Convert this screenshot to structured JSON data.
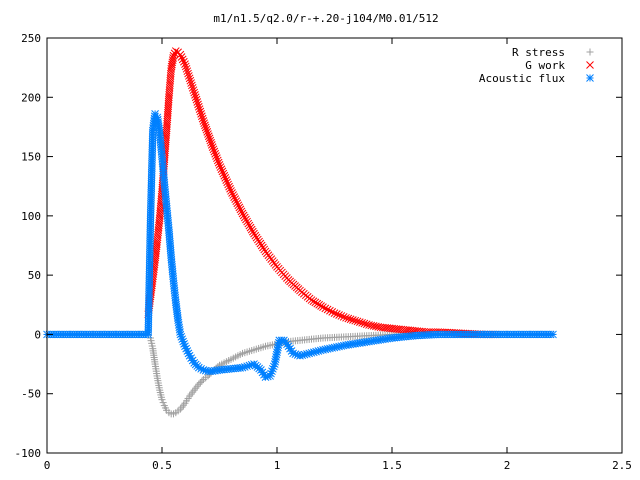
{
  "chart_data": {
    "type": "scatter",
    "title": "m1/n1.5/q2.0/r-+.20-j104/M0.01/512",
    "xlabel": "",
    "ylabel": "",
    "xlim": [
      0,
      2.5
    ],
    "ylim": [
      -100,
      250
    ],
    "xticks": [
      0,
      0.5,
      1,
      1.5,
      2,
      2.5
    ],
    "xtick_labels": [
      "0",
      "0.5",
      "1",
      "1.5",
      "2",
      "2.5"
    ],
    "yticks": [
      -100,
      -50,
      0,
      50,
      100,
      150,
      200,
      250
    ],
    "ytick_labels": [
      "-100",
      "-50",
      "0",
      "50",
      "100",
      "150",
      "200",
      "250"
    ],
    "grid": false,
    "legend_position": "top-right",
    "series": [
      {
        "name": "R stress",
        "marker": "plus",
        "color": "#a0a0a0",
        "x": [
          0.0,
          0.1,
          0.2,
          0.3,
          0.4,
          0.44,
          0.45,
          0.46,
          0.47,
          0.48,
          0.49,
          0.5,
          0.51,
          0.52,
          0.53,
          0.54,
          0.55,
          0.56,
          0.58,
          0.6,
          0.62,
          0.64,
          0.66,
          0.68,
          0.7,
          0.72,
          0.75,
          0.8,
          0.85,
          0.9,
          0.95,
          1.0,
          1.05,
          1.1,
          1.2,
          1.3,
          1.4,
          1.5,
          1.6,
          1.7,
          1.8,
          1.9,
          2.0,
          2.1,
          2.2
        ],
        "y": [
          0,
          0,
          0,
          0,
          0,
          0,
          -3,
          -12,
          -25,
          -37,
          -47,
          -55,
          -60,
          -64,
          -66,
          -67,
          -67,
          -66,
          -63,
          -58,
          -52,
          -47,
          -42,
          -38,
          -35,
          -31,
          -26,
          -21,
          -16,
          -13,
          -10,
          -8,
          -6,
          -5,
          -3,
          -2,
          -1,
          0,
          0,
          0,
          0,
          0,
          0,
          0,
          0
        ]
      },
      {
        "name": "G work",
        "marker": "cross",
        "color": "#ff0000",
        "x": [
          0.44,
          0.45,
          0.46,
          0.47,
          0.48,
          0.49,
          0.5,
          0.51,
          0.52,
          0.53,
          0.54,
          0.55,
          0.56,
          0.57,
          0.58,
          0.6,
          0.62,
          0.64,
          0.66,
          0.68,
          0.7,
          0.72,
          0.75,
          0.8,
          0.85,
          0.9,
          0.95,
          1.0,
          1.05,
          1.1,
          1.15,
          1.2,
          1.25,
          1.3,
          1.35,
          1.4,
          1.45,
          1.5,
          1.55,
          1.6,
          1.65,
          1.7,
          1.8,
          1.9,
          1.95
        ],
        "y": [
          17,
          32,
          47,
          63,
          80,
          98,
          120,
          146,
          172,
          200,
          224,
          235,
          239,
          238,
          236,
          228,
          216,
          204,
          192,
          180,
          169,
          158,
          143,
          121,
          102,
          85,
          70,
          57,
          46,
          37,
          29,
          23,
          18,
          14,
          11,
          8,
          6,
          5,
          4,
          3,
          2,
          2,
          1,
          0,
          0
        ]
      },
      {
        "name": "Acoustic flux",
        "marker": "star",
        "color": "#0080ff",
        "x": [
          0.0,
          0.1,
          0.2,
          0.3,
          0.4,
          0.44,
          0.45,
          0.46,
          0.47,
          0.48,
          0.49,
          0.5,
          0.51,
          0.52,
          0.53,
          0.54,
          0.55,
          0.56,
          0.57,
          0.58,
          0.6,
          0.62,
          0.64,
          0.66,
          0.68,
          0.7,
          0.72,
          0.75,
          0.8,
          0.85,
          0.9,
          0.93,
          0.95,
          0.97,
          0.99,
          1.0,
          1.01,
          1.03,
          1.05,
          1.07,
          1.1,
          1.2,
          1.3,
          1.4,
          1.5,
          1.6,
          1.7,
          1.8,
          1.9,
          2.0,
          2.1,
          2.2
        ],
        "y": [
          0,
          0,
          0,
          0,
          0,
          0,
          97,
          172,
          186,
          183,
          170,
          150,
          128,
          108,
          88,
          65,
          45,
          27,
          12,
          0,
          -10,
          -18,
          -24,
          -28,
          -30,
          -31,
          -31,
          -30,
          -29,
          -28,
          -25,
          -30,
          -36,
          -35,
          -25,
          -15,
          -5,
          -5,
          -10,
          -16,
          -18,
          -13,
          -9,
          -6,
          -3,
          -1,
          0,
          0,
          0,
          0,
          0,
          0
        ]
      }
    ]
  }
}
